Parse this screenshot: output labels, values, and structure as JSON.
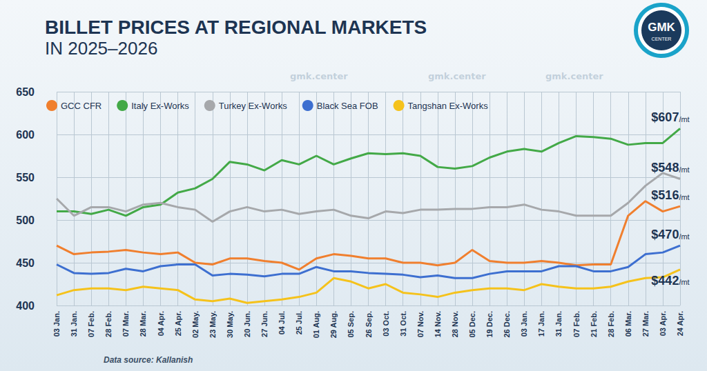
{
  "chart_data": {
    "type": "line",
    "title": "BILLET PRICES AT REGIONAL MARKETS",
    "subtitle": "IN 2025–2026",
    "source": "Data source: Kallanish",
    "logo": {
      "text": "GMK",
      "subtext": "CENTER"
    },
    "watermark": "gmk.center",
    "categories": [
      "03 Jan.",
      "31 Jan.",
      "07 Feb.",
      "28 Feb.",
      "07 Mar.",
      "28 Mar.",
      "04 Apr.",
      "25 Apr.",
      "02 May.",
      "23 May.",
      "30 May.",
      "20 Jun.",
      "27 Jun.",
      "04 Jul.",
      "25 Jul.",
      "01 Aug.",
      "29 Aug.",
      "05 Sep.",
      "26 Sep.",
      "03 Oct.",
      "31 Oct.",
      "07 Nov.",
      "14 Nov.",
      "28 Nov.",
      "05 Dec.",
      "19 Dec.",
      "26 Dec.",
      "03 Jan.",
      "17 Jan.",
      "31 Jan.",
      "07 Feb.",
      "21 Feb.",
      "28 Feb.",
      "06 Mar.",
      "27 Mar.",
      "03 Apr.",
      "24 Apr."
    ],
    "series": [
      {
        "name": "GCC CFR",
        "color": "#f07f2e",
        "values": [
          470,
          460,
          462,
          463,
          465,
          462,
          460,
          462,
          450,
          448,
          455,
          455,
          452,
          450,
          442,
          455,
          460,
          458,
          455,
          455,
          450,
          450,
          447,
          450,
          465,
          452,
          450,
          450,
          452,
          450,
          447,
          448,
          448,
          505,
          522,
          510,
          516
        ],
        "value_labels": [
          null,
          null,
          null,
          null,
          null,
          null,
          null,
          null,
          null,
          null,
          null,
          null,
          null,
          null,
          null,
          null,
          null,
          null,
          null,
          null,
          null,
          null,
          null,
          null,
          null,
          null,
          null,
          null,
          null,
          null,
          null,
          null,
          null,
          null,
          null,
          null,
          "$516/mt"
        ]
      },
      {
        "name": "Italy Ex-Works",
        "color": "#43a947",
        "values": [
          510,
          510,
          507,
          512,
          505,
          515,
          518,
          532,
          537,
          548,
          568,
          565,
          558,
          570,
          565,
          575,
          565,
          572,
          578,
          577,
          578,
          575,
          562,
          560,
          563,
          573,
          580,
          583,
          580,
          590,
          598,
          597,
          595,
          588,
          590,
          590,
          607
        ],
        "value_labels": [
          null,
          null,
          null,
          null,
          null,
          null,
          null,
          null,
          null,
          null,
          null,
          null,
          null,
          null,
          null,
          null,
          null,
          null,
          null,
          null,
          null,
          null,
          null,
          null,
          null,
          null,
          null,
          null,
          null,
          null,
          null,
          null,
          null,
          null,
          null,
          null,
          "$607/mt"
        ]
      },
      {
        "name": "Turkey Ex-Works",
        "color": "#a6a8ab",
        "values": [
          525,
          505,
          515,
          515,
          510,
          518,
          520,
          515,
          512,
          498,
          510,
          515,
          510,
          512,
          507,
          510,
          512,
          505,
          502,
          510,
          508,
          512,
          512,
          513,
          513,
          515,
          515,
          518,
          512,
          510,
          505,
          505,
          505,
          520,
          540,
          555,
          548
        ],
        "value_labels": [
          null,
          null,
          null,
          null,
          null,
          null,
          null,
          null,
          null,
          null,
          null,
          null,
          null,
          null,
          null,
          null,
          null,
          null,
          null,
          null,
          null,
          null,
          null,
          null,
          null,
          null,
          null,
          null,
          null,
          null,
          null,
          null,
          null,
          null,
          null,
          null,
          "$548/mt"
        ]
      },
      {
        "name": "Black Sea FOB",
        "color": "#3d6fd0",
        "values": [
          448,
          438,
          437,
          438,
          443,
          440,
          446,
          448,
          448,
          435,
          437,
          436,
          434,
          437,
          437,
          445,
          440,
          440,
          438,
          437,
          436,
          433,
          435,
          432,
          432,
          437,
          440,
          440,
          440,
          446,
          446,
          440,
          440,
          445,
          460,
          462,
          470
        ],
        "value_labels": [
          null,
          null,
          null,
          null,
          null,
          null,
          null,
          null,
          null,
          null,
          null,
          null,
          null,
          null,
          null,
          null,
          null,
          null,
          null,
          null,
          null,
          null,
          null,
          null,
          null,
          null,
          null,
          null,
          null,
          null,
          null,
          null,
          null,
          null,
          null,
          null,
          "$470/mt"
        ]
      },
      {
        "name": "Tangshan Ex-Works",
        "color": "#f5c21b",
        "values": [
          412,
          418,
          420,
          420,
          418,
          422,
          420,
          418,
          407,
          405,
          408,
          403,
          405,
          407,
          410,
          415,
          432,
          428,
          420,
          425,
          415,
          413,
          410,
          415,
          418,
          420,
          420,
          418,
          425,
          422,
          420,
          420,
          422,
          428,
          432,
          433,
          442
        ],
        "value_labels": [
          null,
          null,
          null,
          null,
          null,
          null,
          null,
          null,
          null,
          null,
          null,
          null,
          null,
          null,
          null,
          null,
          null,
          null,
          null,
          null,
          null,
          null,
          null,
          null,
          null,
          null,
          null,
          null,
          null,
          null,
          null,
          null,
          null,
          null,
          null,
          null,
          "$442/mt"
        ]
      }
    ],
    "ylim": [
      400,
      650
    ],
    "yticks": [
      400,
      450,
      500,
      550,
      600,
      650
    ],
    "grid": true,
    "legend": "top-left"
  }
}
